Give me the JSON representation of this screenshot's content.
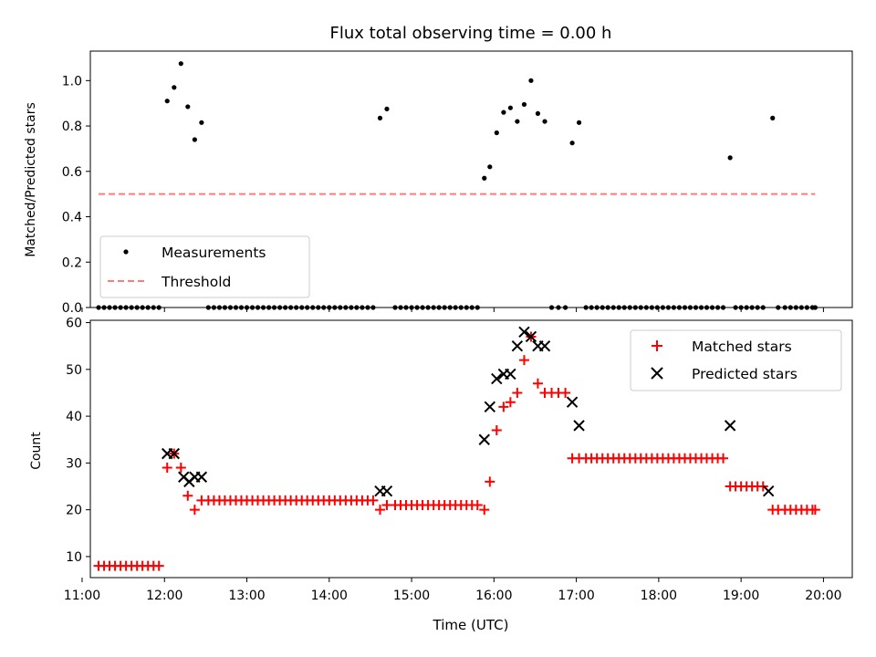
{
  "figure": {
    "title": "Flux total observing time = 0.00 h",
    "xlabel": "Time (UTC)"
  },
  "chart_data": [
    {
      "type": "scatter",
      "ylabel": "Matched/Predicted stars",
      "x_unit": "hours UTC",
      "xlim": [
        11.1,
        20.35
      ],
      "ylim": [
        0,
        1.13
      ],
      "yticks": [
        0.0,
        0.2,
        0.4,
        0.6,
        0.8,
        1.0
      ],
      "yticklabels": [
        "0.0",
        "0.2",
        "0.4",
        "0.6",
        "0.8",
        "1.0"
      ],
      "grid": false,
      "legend_position": "lower-left",
      "series": [
        {
          "name": "Measurements",
          "marker": "dot",
          "color": "#000000",
          "x": [
            11.2,
            11.267,
            11.333,
            11.4,
            11.467,
            11.533,
            11.6,
            11.667,
            11.733,
            11.8,
            11.867,
            11.933,
            12.033,
            12.117,
            12.2,
            12.283,
            12.367,
            12.45,
            12.533,
            12.6,
            12.667,
            12.733,
            12.8,
            12.867,
            12.933,
            13.0,
            13.067,
            13.133,
            13.2,
            13.267,
            13.333,
            13.4,
            13.467,
            13.533,
            13.6,
            13.667,
            13.733,
            13.8,
            13.867,
            13.933,
            14.0,
            14.067,
            14.133,
            14.2,
            14.267,
            14.333,
            14.4,
            14.467,
            14.533,
            14.617,
            14.7,
            14.8,
            14.867,
            14.933,
            15.0,
            15.067,
            15.133,
            15.2,
            15.267,
            15.333,
            15.4,
            15.467,
            15.533,
            15.6,
            15.667,
            15.733,
            15.8,
            15.883,
            15.95,
            16.033,
            16.117,
            16.2,
            16.283,
            16.367,
            16.45,
            16.533,
            16.617,
            16.7,
            16.783,
            16.867,
            16.95,
            17.033,
            17.117,
            17.183,
            17.25,
            17.317,
            17.383,
            17.45,
            17.517,
            17.583,
            17.65,
            17.717,
            17.783,
            17.85,
            17.917,
            17.983,
            18.05,
            18.117,
            18.183,
            18.25,
            18.317,
            18.383,
            18.45,
            18.517,
            18.583,
            18.65,
            18.717,
            18.783,
            18.867,
            18.933,
            19.0,
            19.067,
            19.133,
            19.2,
            19.267,
            19.383,
            19.45,
            19.533,
            19.6,
            19.667,
            19.733,
            19.8,
            19.867,
            19.9
          ],
          "y": [
            0,
            0,
            0,
            0,
            0,
            0,
            0,
            0,
            0,
            0,
            0,
            0,
            0.91,
            0.97,
            1.075,
            0.885,
            0.74,
            0.815,
            0,
            0,
            0,
            0,
            0,
            0,
            0,
            0,
            0,
            0,
            0,
            0,
            0,
            0,
            0,
            0,
            0,
            0,
            0,
            0,
            0,
            0,
            0,
            0,
            0,
            0,
            0,
            0,
            0,
            0,
            0,
            0.835,
            0.875,
            0,
            0,
            0,
            0,
            0,
            0,
            0,
            0,
            0,
            0,
            0,
            0,
            0,
            0,
            0,
            0,
            0.57,
            0.62,
            0.77,
            0.86,
            0.88,
            0.82,
            0.895,
            1.0,
            0.855,
            0.82,
            0,
            0,
            0,
            0.725,
            0.815,
            0,
            0,
            0,
            0,
            0,
            0,
            0,
            0,
            0,
            0,
            0,
            0,
            0,
            0,
            0,
            0,
            0,
            0,
            0,
            0,
            0,
            0,
            0,
            0,
            0,
            0,
            0.66,
            0,
            0,
            0,
            0,
            0,
            0,
            0.835,
            0,
            0,
            0,
            0,
            0,
            0,
            0,
            0
          ]
        },
        {
          "name": "Threshold",
          "line": "dashed",
          "color": "#ff7b7b",
          "x": [
            11.2,
            19.9
          ],
          "y": [
            0.5,
            0.5
          ]
        }
      ]
    },
    {
      "type": "scatter",
      "ylabel": "Count",
      "x_unit": "hours UTC",
      "xlim": [
        11.1,
        20.35
      ],
      "ylim": [
        5.5,
        60.5
      ],
      "yticks": [
        10,
        20,
        30,
        40,
        50,
        60
      ],
      "yticklabels": [
        "10",
        "20",
        "30",
        "40",
        "50",
        "60"
      ],
      "xticks": [
        11,
        12,
        13,
        14,
        15,
        16,
        17,
        18,
        19,
        20
      ],
      "xticklabels": [
        "11:00",
        "12:00",
        "13:00",
        "14:00",
        "15:00",
        "16:00",
        "17:00",
        "18:00",
        "19:00",
        "20:00"
      ],
      "grid": false,
      "legend_position": "top-right",
      "series": [
        {
          "name": "Matched stars",
          "marker": "plus",
          "color": "#ff0000",
          "x": [
            11.2,
            11.267,
            11.333,
            11.4,
            11.467,
            11.533,
            11.6,
            11.667,
            11.733,
            11.8,
            11.867,
            11.933,
            12.033,
            12.117,
            12.2,
            12.283,
            12.367,
            12.45,
            12.533,
            12.6,
            12.667,
            12.733,
            12.8,
            12.867,
            12.933,
            13.0,
            13.067,
            13.133,
            13.2,
            13.267,
            13.333,
            13.4,
            13.467,
            13.533,
            13.6,
            13.667,
            13.733,
            13.8,
            13.867,
            13.933,
            14.0,
            14.067,
            14.133,
            14.2,
            14.267,
            14.333,
            14.4,
            14.467,
            14.533,
            14.617,
            14.7,
            14.8,
            14.867,
            14.933,
            15.0,
            15.067,
            15.133,
            15.2,
            15.267,
            15.333,
            15.4,
            15.467,
            15.533,
            15.6,
            15.667,
            15.733,
            15.8,
            15.883,
            15.95,
            16.033,
            16.117,
            16.2,
            16.283,
            16.367,
            16.45,
            16.533,
            16.617,
            16.7,
            16.783,
            16.867,
            16.95,
            17.033,
            17.117,
            17.183,
            17.25,
            17.317,
            17.383,
            17.45,
            17.517,
            17.583,
            17.65,
            17.717,
            17.783,
            17.85,
            17.917,
            17.983,
            18.05,
            18.117,
            18.183,
            18.25,
            18.317,
            18.383,
            18.45,
            18.517,
            18.583,
            18.65,
            18.717,
            18.783,
            18.867,
            18.933,
            19.0,
            19.067,
            19.133,
            19.2,
            19.267,
            19.383,
            19.45,
            19.533,
            19.6,
            19.667,
            19.733,
            19.8,
            19.867,
            19.9
          ],
          "y": [
            8,
            8,
            8,
            8,
            8,
            8,
            8,
            8,
            8,
            8,
            8,
            8,
            29,
            32,
            29,
            23,
            20,
            22,
            22,
            22,
            22,
            22,
            22,
            22,
            22,
            22,
            22,
            22,
            22,
            22,
            22,
            22,
            22,
            22,
            22,
            22,
            22,
            22,
            22,
            22,
            22,
            22,
            22,
            22,
            22,
            22,
            22,
            22,
            22,
            20,
            21,
            21,
            21,
            21,
            21,
            21,
            21,
            21,
            21,
            21,
            21,
            21,
            21,
            21,
            21,
            21,
            21,
            20,
            26,
            37,
            42,
            43,
            45,
            52,
            57,
            47,
            45,
            45,
            45,
            45,
            31,
            31,
            31,
            31,
            31,
            31,
            31,
            31,
            31,
            31,
            31,
            31,
            31,
            31,
            31,
            31,
            31,
            31,
            31,
            31,
            31,
            31,
            31,
            31,
            31,
            31,
            31,
            31,
            25,
            25,
            25,
            25,
            25,
            25,
            25,
            20,
            20,
            20,
            20,
            20,
            20,
            20,
            20,
            20
          ]
        },
        {
          "name": "Predicted stars",
          "marker": "x",
          "color": "#000000",
          "x": [
            12.033,
            12.117,
            12.233,
            12.3,
            12.367,
            12.45,
            14.617,
            14.7,
            15.883,
            15.95,
            16.033,
            16.117,
            16.2,
            16.283,
            16.367,
            16.45,
            16.533,
            16.617,
            16.95,
            17.033,
            18.867,
            19.333
          ],
          "y": [
            32,
            32,
            27,
            26,
            27,
            27,
            24,
            24,
            35,
            42,
            48,
            49,
            49,
            55,
            58,
            57,
            55,
            55,
            43,
            38,
            38,
            24
          ]
        }
      ]
    }
  ]
}
